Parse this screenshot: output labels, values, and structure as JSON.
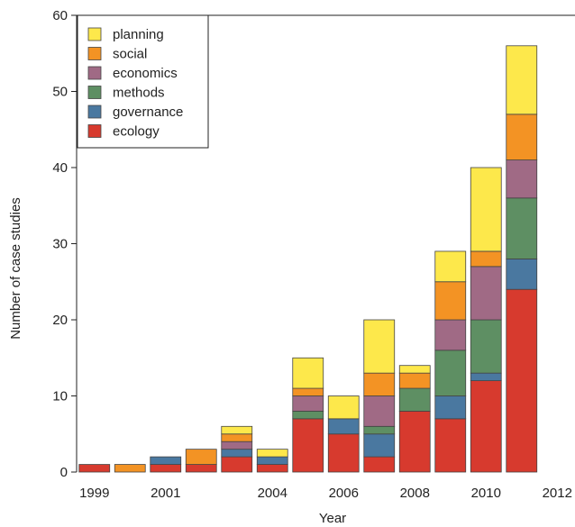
{
  "chart_data": {
    "type": "bar",
    "stacked": true,
    "xlabel": "Year",
    "ylabel": "Number of case studies",
    "ylim": [
      0,
      60
    ],
    "yticks": [
      0,
      10,
      20,
      30,
      40,
      50,
      60
    ],
    "categories": [
      "1999",
      "2000",
      "2001",
      "2002",
      "2003",
      "2004",
      "2005",
      "2006",
      "2007",
      "2008",
      "2009",
      "2010",
      "2011",
      "2012"
    ],
    "xtick_labels": [
      "1999",
      "",
      "2001",
      "",
      "",
      "2004",
      "",
      "2006",
      "",
      "2008",
      "",
      "2010",
      "",
      "2012"
    ],
    "legend_position": "top-left",
    "series": [
      {
        "name": "ecology",
        "color": "#d73a2e",
        "values": [
          1,
          0,
          1,
          1,
          2,
          1,
          7,
          5,
          2,
          8,
          7,
          12,
          24,
          0
        ]
      },
      {
        "name": "governance",
        "color": "#4a78a0",
        "values": [
          0,
          0,
          1,
          0,
          1,
          1,
          0,
          2,
          3,
          0,
          3,
          1,
          4,
          0
        ]
      },
      {
        "name": "methods",
        "color": "#5e8f63",
        "values": [
          0,
          0,
          0,
          0,
          0,
          0,
          1,
          0,
          1,
          3,
          6,
          7,
          8,
          0
        ]
      },
      {
        "name": "economics",
        "color": "#a06a85",
        "values": [
          0,
          0,
          0,
          0,
          1,
          0,
          2,
          0,
          4,
          0,
          4,
          7,
          5,
          0
        ]
      },
      {
        "name": "social",
        "color": "#f39324",
        "values": [
          0,
          1,
          0,
          2,
          1,
          0,
          1,
          0,
          3,
          2,
          5,
          2,
          6,
          0
        ]
      },
      {
        "name": "planning",
        "color": "#fde84b",
        "values": [
          0,
          0,
          0,
          0,
          1,
          1,
          4,
          3,
          7,
          1,
          4,
          11,
          9,
          0
        ]
      }
    ]
  }
}
